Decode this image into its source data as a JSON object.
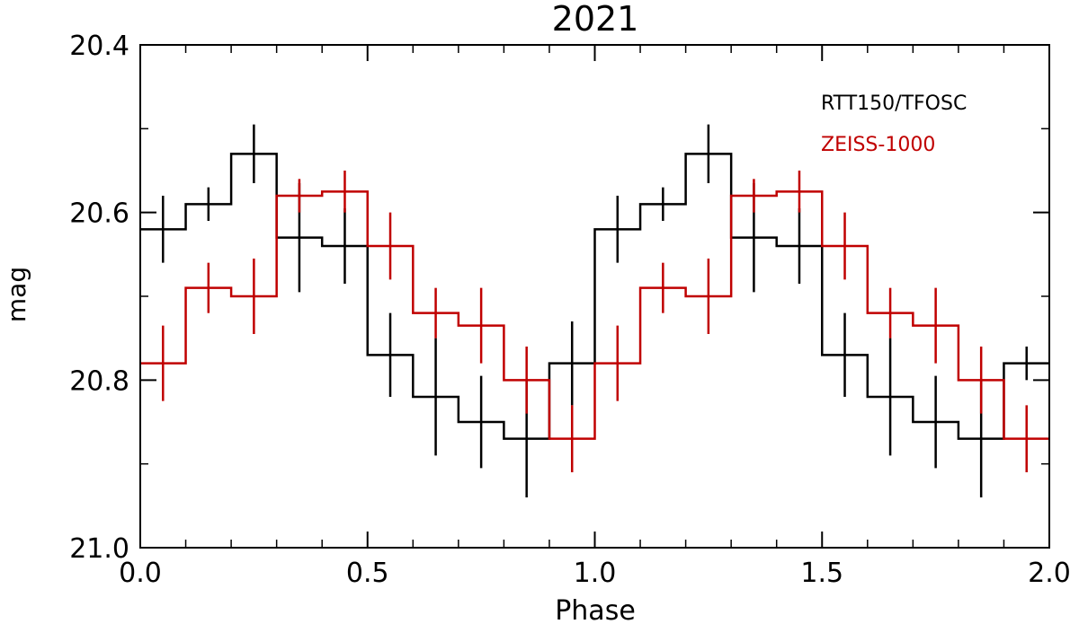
{
  "chart_data": {
    "type": "line",
    "title": "2021",
    "xlabel": "Phase",
    "ylabel": "mag",
    "xlim": [
      0.0,
      2.0
    ],
    "ylim": [
      21.0,
      20.4
    ],
    "y_inverted": true,
    "step_style": "histogram",
    "grid": false,
    "legend_position": "top-right",
    "x_ticks": [
      0.0,
      0.5,
      1.0,
      1.5,
      2.0
    ],
    "x_tick_labels": [
      "0.0",
      "0.5",
      "1.0",
      "1.5",
      "2.0"
    ],
    "y_ticks": [
      20.4,
      20.6,
      20.8,
      21.0
    ],
    "y_tick_labels": [
      "20.4",
      "20.6",
      "20.8",
      "21.0"
    ],
    "x": [
      0.05,
      0.15,
      0.25,
      0.35,
      0.45,
      0.55,
      0.65,
      0.75,
      0.85,
      0.95,
      1.05,
      1.15,
      1.25,
      1.35,
      1.45,
      1.55,
      1.65,
      1.75,
      1.85,
      1.95
    ],
    "series": [
      {
        "name": "RTT150/TFOSC",
        "color": "#000000",
        "values": [
          20.62,
          20.59,
          20.53,
          20.63,
          20.64,
          20.77,
          20.82,
          20.85,
          20.87,
          20.78,
          20.62,
          20.59,
          20.53,
          20.63,
          20.64,
          20.77,
          20.82,
          20.85,
          20.87,
          20.78
        ],
        "errors": [
          0.04,
          0.02,
          0.035,
          0.065,
          0.045,
          0.05,
          0.07,
          0.055,
          0.07,
          0.05,
          0.04,
          0.02,
          0.035,
          0.065,
          0.045,
          0.05,
          0.07,
          0.055,
          0.07,
          0.02
        ]
      },
      {
        "name": "ZEISS-1000",
        "color": "#c00000",
        "values": [
          20.78,
          20.69,
          20.7,
          20.58,
          20.575,
          20.64,
          20.72,
          20.735,
          20.8,
          20.87,
          20.78,
          20.69,
          20.7,
          20.58,
          20.575,
          20.64,
          20.72,
          20.735,
          20.8,
          20.87
        ],
        "errors": [
          0.045,
          0.03,
          0.045,
          0.02,
          0.025,
          0.04,
          0.03,
          0.045,
          0.04,
          0.04,
          0.045,
          0.03,
          0.045,
          0.02,
          0.025,
          0.04,
          0.03,
          0.045,
          0.04,
          0.04
        ]
      }
    ]
  }
}
